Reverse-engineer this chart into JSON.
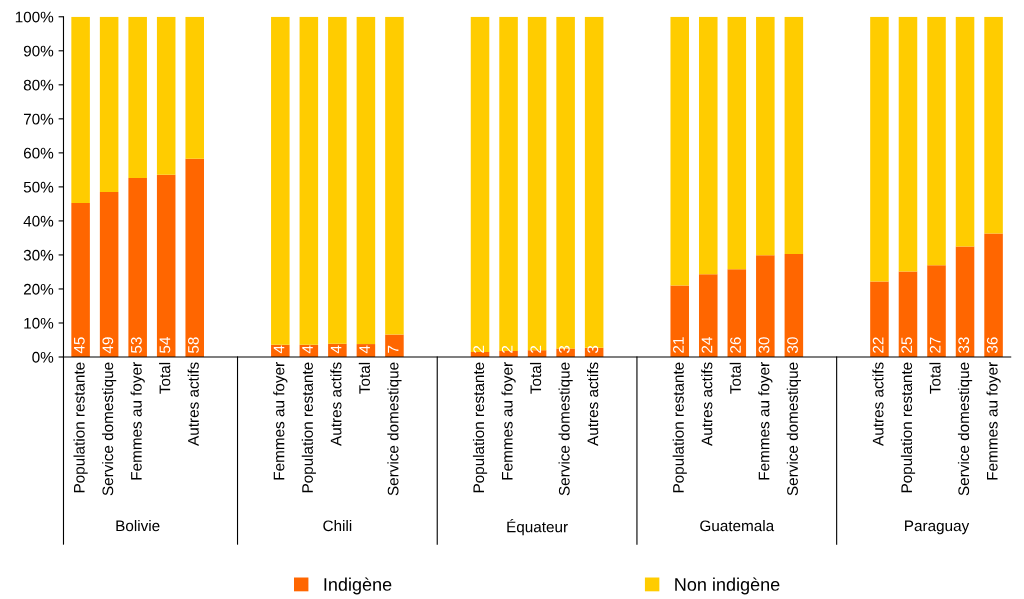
{
  "chart_data": {
    "type": "bar",
    "stacked": true,
    "categories": [
      "Population restante",
      "Service domestique",
      "Femmes au foyer",
      "Total",
      "Autres actifs",
      null,
      null,
      "Femmes au foyer",
      "Population restante",
      "Autres actifs",
      "Total",
      "Service domestique",
      null,
      null,
      "Population restante",
      "Femmes au foyer",
      "Total",
      "Service domestique",
      "Autres actifs",
      null,
      null,
      "Population restante",
      "Autres actifs",
      "Total",
      "Femmes au foyer",
      "Service domestique",
      null,
      null,
      "Autres actifs",
      "Population restante",
      "Total",
      "Service domestique",
      "Femmes au foyer"
    ],
    "series": [
      {
        "name": "Indigène",
        "color": "#ff6600",
        "values": [
          45.3,
          48.5,
          52.6,
          53.6,
          58.3,
          null,
          null,
          3.6,
          3.6,
          3.9,
          3.8,
          6.6,
          null,
          null,
          1.5,
          1.8,
          2.0,
          2.5,
          2.7,
          null,
          null,
          21.0,
          24.3,
          25.8,
          29.9,
          30.3,
          null,
          null,
          22.2,
          25.1,
          27.0,
          32.5,
          36.3
        ],
        "value_labels": [
          "45",
          "49",
          "53",
          "54",
          "58",
          null,
          null,
          "4",
          "4",
          "4",
          "4",
          "7",
          null,
          null,
          "2",
          "2",
          "2",
          "3",
          "3",
          null,
          null,
          "21",
          "24",
          "26",
          "30",
          "30",
          null,
          null,
          "22",
          "25",
          "27",
          "33",
          "36"
        ]
      },
      {
        "name": "Non indigène",
        "color": "#ffcc00",
        "values": [
          54.7,
          51.5,
          47.4,
          46.4,
          41.7,
          null,
          null,
          96.4,
          96.4,
          96.1,
          96.2,
          93.4,
          null,
          null,
          98.5,
          98.2,
          98.0,
          97.5,
          97.3,
          null,
          null,
          79.0,
          75.7,
          74.2,
          70.1,
          69.7,
          null,
          null,
          77.8,
          74.9,
          73.0,
          67.5,
          63.7
        ]
      }
    ],
    "annotations": [
      "Bolivie",
      "Chili",
      "Équateur",
      "Guatemala",
      "Paraguay"
    ],
    "ylim": [
      0,
      100
    ],
    "yticks": [
      {
        "value": 0,
        "label": "0%"
      },
      {
        "value": 10,
        "label": "10%"
      },
      {
        "value": 20,
        "label": "20%"
      },
      {
        "value": 30,
        "label": "30%"
      },
      {
        "value": 40,
        "label": "40%"
      },
      {
        "value": 50,
        "label": "50%"
      },
      {
        "value": 60,
        "label": "60%"
      },
      {
        "value": 70,
        "label": "70%"
      },
      {
        "value": 80,
        "label": "80%"
      },
      {
        "value": 90,
        "label": "90%"
      },
      {
        "value": 100,
        "label": "100%"
      }
    ],
    "grid": false,
    "legend": "bottom"
  }
}
